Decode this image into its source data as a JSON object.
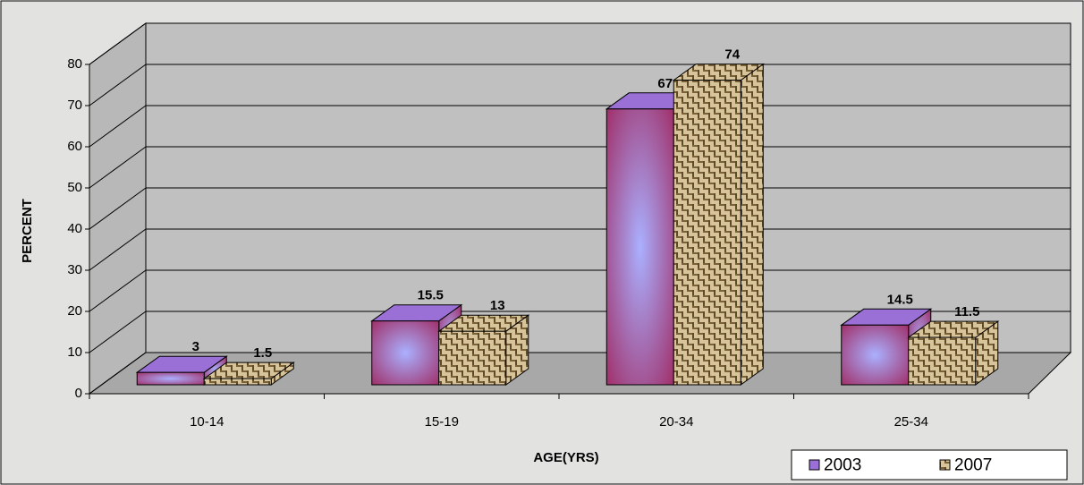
{
  "chart_data": {
    "type": "bar3d",
    "x_label": "AGE(YRS)",
    "y_label": "PERCENT",
    "categories": [
      "10-14",
      "15-19",
      "20-34",
      "25-34"
    ],
    "series": [
      {
        "name": "2003",
        "color": "#9a6fd6",
        "values": [
          3,
          15.5,
          67,
          14.5
        ]
      },
      {
        "name": "2007",
        "color": "#c9b58a",
        "values": [
          1.5,
          13,
          74,
          11.5
        ]
      }
    ],
    "ylim": [
      0,
      80
    ],
    "yticks": [
      0,
      10,
      20,
      30,
      40,
      50,
      60,
      70,
      80
    ],
    "grid": true,
    "legend": "bottom-right"
  }
}
